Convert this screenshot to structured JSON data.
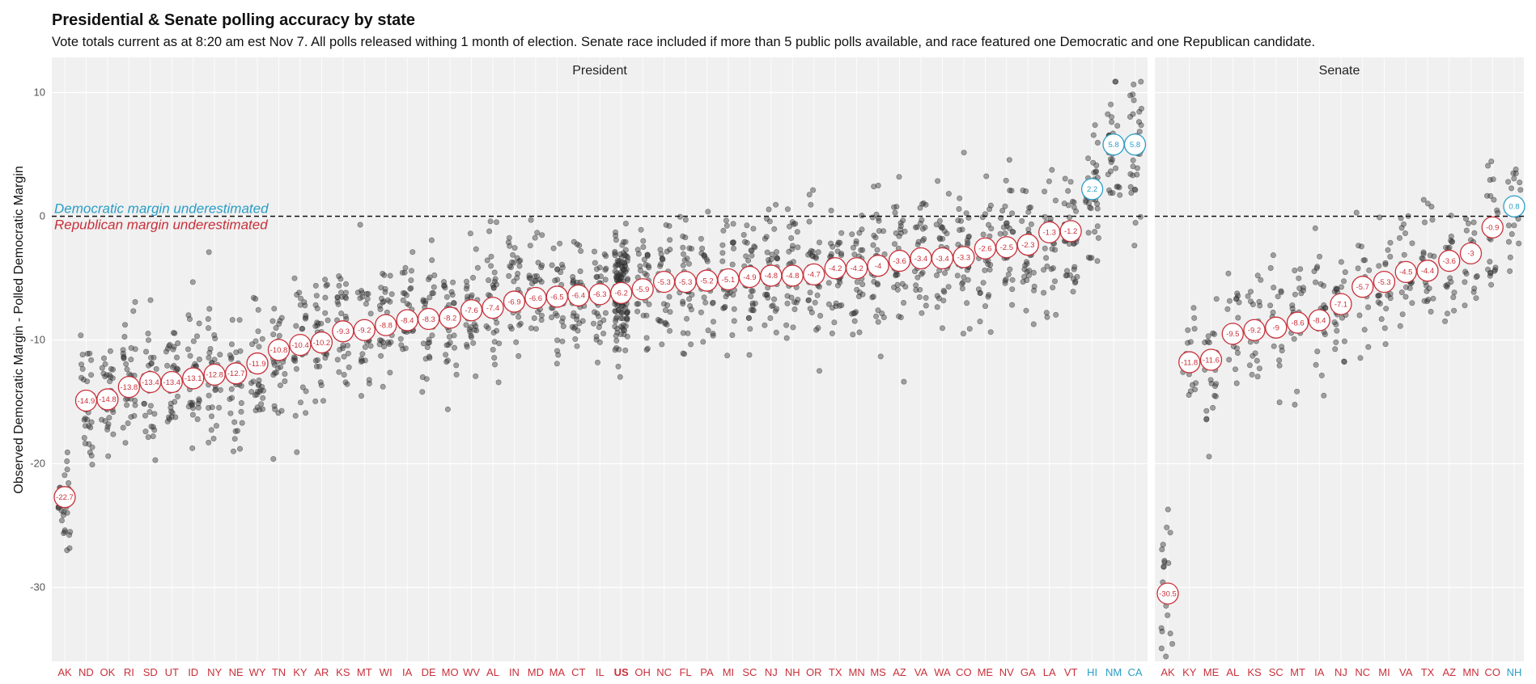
{
  "title": "Presidential & Senate polling accuracy by state",
  "subtitle": "Vote totals current as at 8:20 am est Nov 7. All polls released withing 1 month of election. Senate race included if more than 5 public polls available, and race featured one Democratic and one Republican candidate.",
  "chart_data": {
    "type": "scatter",
    "title": "Presidential & Senate polling accuracy by state",
    "ylabel": "Observed Democratic Margin - Polled Democratic Margin",
    "xlabel": "",
    "ylim": [
      -36,
      12
    ],
    "yticks": [
      10,
      0,
      -10,
      -20,
      -30
    ],
    "reference_line": 0,
    "annotations": {
      "above": "Democratic margin underestimated",
      "below": "Republican margin underestimated"
    },
    "colors": {
      "dem": "#2a9dc6",
      "rep": "#c8303a",
      "point": "#3a3a3a",
      "panel": "#f0f0f0"
    },
    "panels": [
      {
        "name": "President",
        "states": [
          "AK",
          "ND",
          "OK",
          "RI",
          "SD",
          "UT",
          "ID",
          "NY",
          "NE",
          "WY",
          "TN",
          "KY",
          "AR",
          "KS",
          "MT",
          "WI",
          "IA",
          "DE",
          "MO",
          "WV",
          "AL",
          "IN",
          "MD",
          "MA",
          "CT",
          "IL",
          "US",
          "OH",
          "NC",
          "FL",
          "PA",
          "MI",
          "SC",
          "NJ",
          "NH",
          "OR",
          "TX",
          "MN",
          "MS",
          "AZ",
          "VA",
          "WA",
          "CO",
          "ME",
          "NV",
          "GA",
          "LA",
          "VT",
          "HI",
          "NM",
          "CA"
        ],
        "mean_errors": [
          -22.7,
          -14.9,
          -14.8,
          -13.8,
          -13.4,
          -13.4,
          -13.1,
          -12.8,
          -12.7,
          -11.9,
          -10.8,
          -10.4,
          -10.2,
          -9.3,
          -9.2,
          -8.8,
          -8.4,
          -8.3,
          -8.2,
          -7.6,
          -7.4,
          -6.9,
          -6.6,
          -6.5,
          -6.4,
          -6.3,
          -6.2,
          -5.9,
          -5.3,
          -5.3,
          -5.2,
          -5.1,
          -4.9,
          -4.8,
          -4.8,
          -4.7,
          -4.2,
          -4.2,
          -4,
          -3.6,
          -3.4,
          -3.4,
          -3.3,
          -2.6,
          -2.5,
          -2.3,
          -1.3,
          -1.2,
          2.2,
          5.8,
          5.8
        ],
        "bold_state": "US"
      },
      {
        "name": "Senate",
        "states": [
          "AK",
          "KY",
          "ME",
          "AL",
          "KS",
          "SC",
          "MT",
          "IA",
          "NJ",
          "NC",
          "MI",
          "VA",
          "TX",
          "AZ",
          "MN",
          "CO",
          "NH"
        ],
        "mean_errors": [
          -30.5,
          -11.8,
          -11.6,
          -9.5,
          -9.2,
          -9,
          -8.6,
          -8.4,
          -7.1,
          -5.7,
          -5.3,
          -4.5,
          -4.4,
          -3.6,
          -3,
          -0.9,
          0.8
        ],
        "bold_state": ""
      }
    ]
  }
}
